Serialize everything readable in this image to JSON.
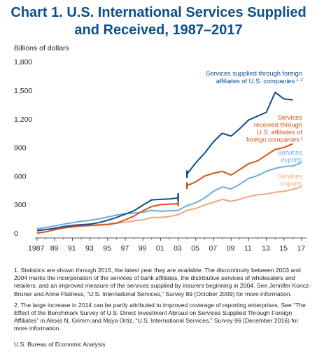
{
  "title_lines": [
    "Chart 1. U.S. International Services Supplied",
    "and Received, 1987–2017"
  ],
  "colors": {
    "title": "#0d4f8b",
    "supplied": "#0d4f8b",
    "received": "#d3561a",
    "exports": "#6faadf",
    "imports": "#f2a77e"
  },
  "chart_data": {
    "type": "line",
    "ylabel": "Billions of dollars",
    "ylim": [
      0,
      1800
    ],
    "yticks": [
      "0",
      "300",
      "600",
      "900",
      "1,200",
      "1,500",
      "1,800"
    ],
    "xticks": [
      "1987",
      "89",
      "91",
      "93",
      "95",
      "97",
      "99",
      "01",
      "03",
      "05",
      "07",
      "09",
      "11",
      "13",
      "15",
      "17"
    ],
    "grid": false,
    "series": [
      {
        "name": "Services supplied through foreign affiliates of U.S. companies",
        "label_lines": [
          "Services supplied through foreign",
          "affiliates of U.S. companies"
        ],
        "label_sup": "1, 2",
        "color_key": "supplied",
        "segments": [
          {
            "x": [
              1987,
              1988,
              1989,
              1990,
              1991,
              1992,
              1993,
              1994,
              1995,
              1996,
              1997,
              1998,
              1999,
              2000,
              2001,
              2002,
              2003
            ],
            "y": [
              75,
              88,
              100,
              120,
              130,
              140,
              145,
              160,
              185,
              215,
              250,
              285,
              345,
              400,
              405,
              410,
              420
            ],
            "end_marker": [
              2003,
              390,
              470
            ]
          },
          {
            "x": [
              2004,
              2005,
              2006,
              2007,
              2008,
              2009,
              2010,
              2011,
              2012,
              2013,
              2014,
              2015,
              2016
            ],
            "y": [
              670,
              790,
              890,
              1010,
              1100,
              1070,
              1150,
              1240,
              1280,
              1320,
              1530,
              1460,
              1450
            ],
            "start_marker": [
              2004,
              630,
              710
            ]
          }
        ]
      },
      {
        "name": "Services received through U.S. affiliates of foreign companies",
        "label_lines": [
          "Services",
          "received through",
          "U.S. affiliates of",
          "foreign companies"
        ],
        "label_sup": "1",
        "color_key": "received",
        "segments": [
          {
            "x": [
              1987,
              1988,
              1989,
              1990,
              1991,
              1992,
              1993,
              1994,
              1995,
              1996,
              1997,
              1998,
              1999,
              2000,
              2001,
              2002,
              2003
            ],
            "y": [
              50,
              65,
              85,
              105,
              115,
              125,
              130,
              135,
              140,
              155,
              190,
              230,
              285,
              330,
              350,
              355,
              360
            ],
            "end_marker": [
              2003,
              335,
              390
            ]
          },
          {
            "x": [
              2004,
              2005,
              2006,
              2007,
              2008,
              2009,
              2010,
              2011,
              2012,
              2013,
              2014,
              2015,
              2016
            ],
            "y": [
              550,
              590,
              650,
              680,
              700,
              660,
              720,
              780,
              810,
              870,
              930,
              950,
              990
            ],
            "start_marker": [
              2004,
              515,
              585
            ]
          }
        ]
      },
      {
        "name": "Services exports",
        "label_lines": [
          "Services",
          "exports"
        ],
        "label_sup": "",
        "color_key": "exports",
        "segments": [
          {
            "x": [
              1987,
              1988,
              1989,
              1990,
              1991,
              1992,
              1993,
              1994,
              1995,
              1996,
              1997,
              1998,
              1999,
              2000,
              2001,
              2002,
              2003,
              2004,
              2005,
              2006,
              2007,
              2008,
              2009,
              2010,
              2011,
              2012,
              2013,
              2014,
              2015,
              2016,
              2017
            ],
            "y": [
              95,
              110,
              125,
              145,
              160,
              175,
              185,
              200,
              220,
              240,
              255,
              260,
              270,
              290,
              280,
              285,
              290,
              340,
              370,
              420,
              490,
              535,
              515,
              565,
              625,
              655,
              700,
              730,
              750,
              755,
              795
            ]
          }
        ]
      },
      {
        "name": "Services imports",
        "label_lines": [
          "Services",
          "imports"
        ],
        "label_sup": "",
        "color_key": "imports",
        "segments": [
          {
            "x": [
              1987,
              1988,
              1989,
              1990,
              1991,
              1992,
              1993,
              1994,
              1995,
              1996,
              1997,
              1998,
              1999,
              2000,
              2001,
              2002,
              2003,
              2004,
              2005,
              2006,
              2007,
              2008,
              2009,
              2010,
              2011,
              2012,
              2013,
              2014,
              2015,
              2016,
              2017
            ],
            "y": [
              80,
              90,
              100,
              115,
              120,
              125,
              130,
              140,
              145,
              155,
              165,
              180,
              190,
              215,
              215,
              225,
              245,
              290,
              310,
              345,
              375,
              405,
              385,
              405,
              435,
              455,
              460,
              480,
              490,
              510,
              540
            ]
          }
        ]
      }
    ]
  },
  "notes": [
    "1. Statistics are shown through 2016, the latest year they are available. The discontinuity between 2003 and 2004 marks the incorporation of the services of bank affiliates, the distributive services of wholesalers and retailers, and an improved measure of the services supplied by insurers beginning in 2004. See Jennifer Koncz-Bruner and Anne Flatness, “U.S. International Services,” Survey 89 (October 2009) for more information.",
    "2. The large increase in 2014 can be partly attributed to improved coverage of reporting enterprises. See “The Effect of the Benchmark Survey of U.S. Direct Investment Abroad on Services Supplied Through Foreign Affiliates” in Alexis N. Grimm and Maya Ortiz, “U.S. International Services,” Survey 96 (December 2016) for more information."
  ],
  "source": "U.S. Bureau of Economic Analysis"
}
